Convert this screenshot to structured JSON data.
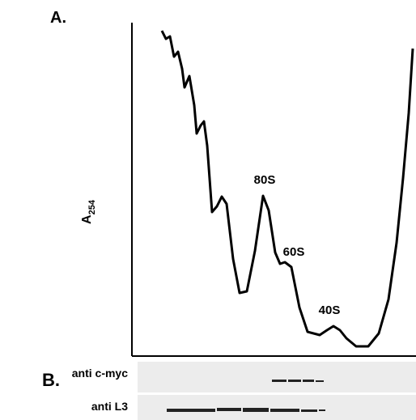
{
  "panel_a": {
    "label": "A.",
    "y_axis_label": {
      "main": "A",
      "subscript": "254"
    },
    "peaks": [
      "80S",
      "60S",
      "40S"
    ]
  },
  "panel_b": {
    "label": "B.",
    "blots": [
      "anti c-myc",
      "anti L3"
    ]
  }
}
